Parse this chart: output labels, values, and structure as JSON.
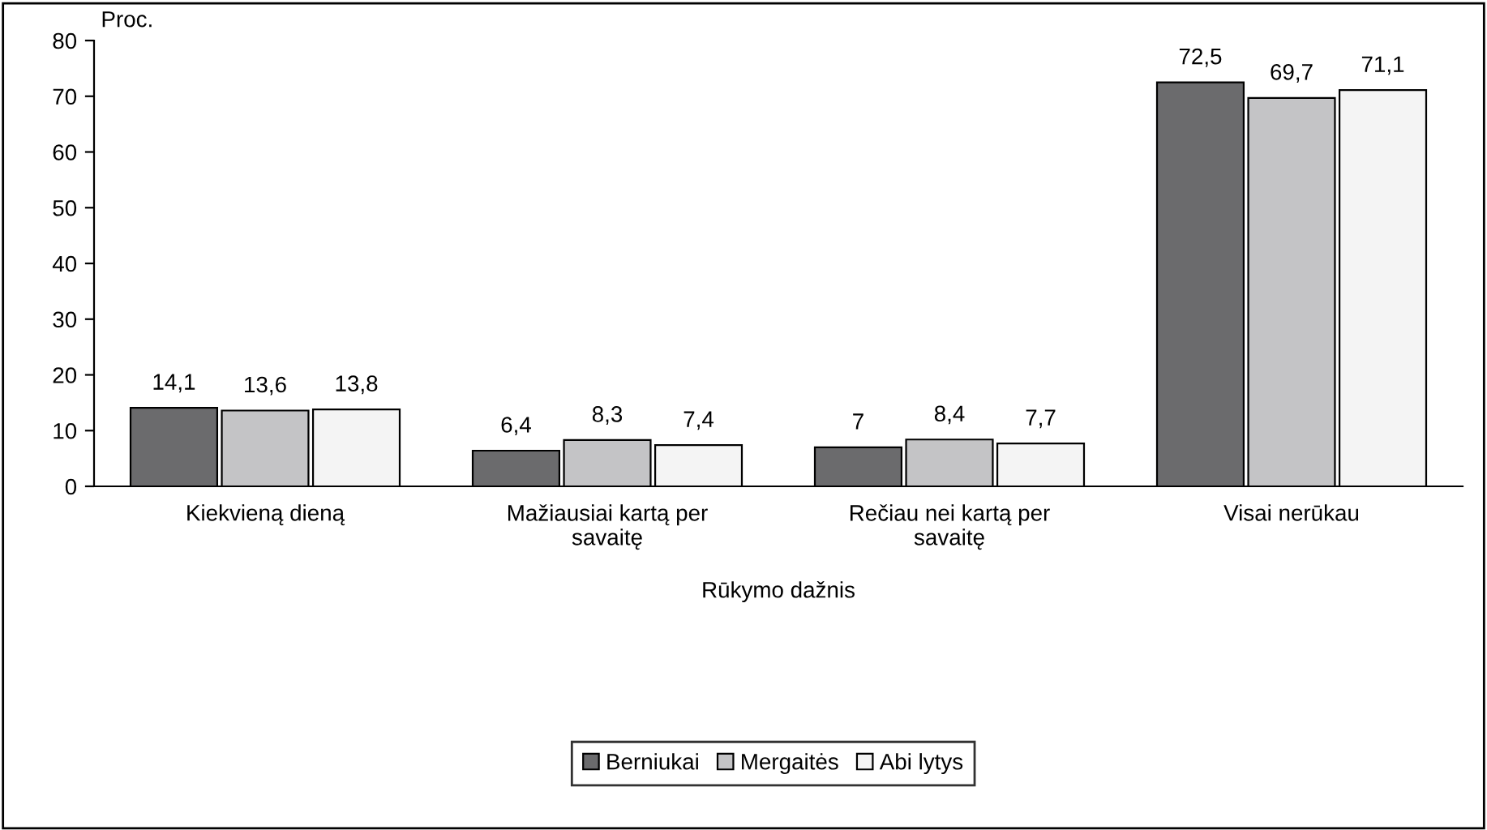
{
  "chart_data": {
    "type": "bar",
    "ylabel": "Proc.",
    "xlabel": "Rūkymo dažnis",
    "categories": [
      "Kiekvieną dieną",
      "Mažiausiai kartą per\nsavaitę",
      "Rečiau nei kartą per\nsavaitę",
      "Visai nerūkau"
    ],
    "series": [
      {
        "name": "Berniukai",
        "color": "#6b6b6d",
        "values": [
          14.1,
          6.4,
          7,
          72.5
        ],
        "value_labels": [
          "14,1",
          "6,4",
          "7",
          "72,5"
        ]
      },
      {
        "name": "Mergaitės",
        "color": "#c4c4c6",
        "values": [
          13.6,
          8.3,
          8.4,
          69.7
        ],
        "value_labels": [
          "13,6",
          "8,3",
          "8,4",
          "69,7"
        ]
      },
      {
        "name": "Abi lytys",
        "color": "#f4f4f4",
        "values": [
          13.8,
          7.4,
          7.7,
          71.1
        ],
        "value_labels": [
          "13,8",
          "7,4",
          "7,7",
          "71,1"
        ]
      }
    ],
    "ylim": [
      0,
      80
    ],
    "yticks": [
      0,
      10,
      20,
      30,
      40,
      50,
      60,
      70,
      80
    ],
    "grid": false,
    "legend": "bottom"
  }
}
